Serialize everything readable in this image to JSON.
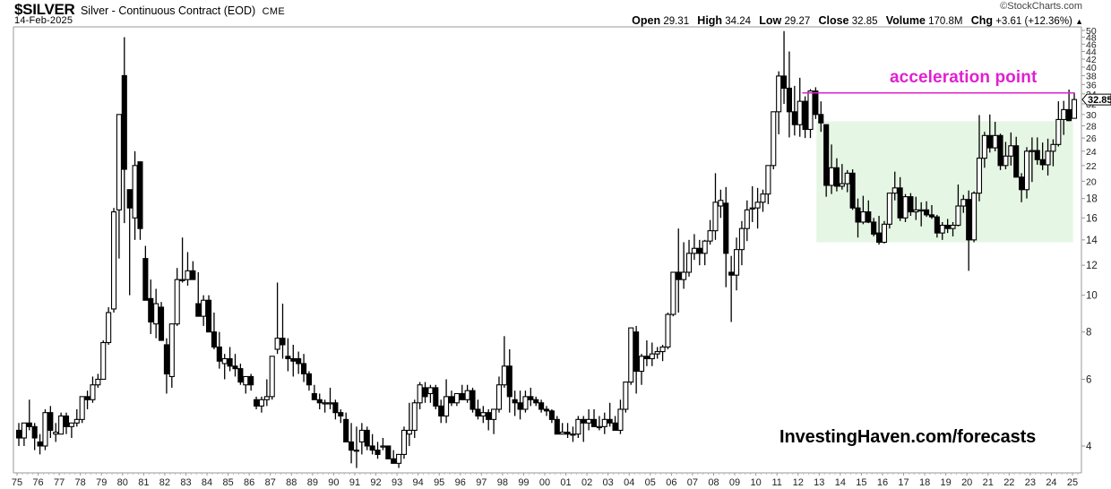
{
  "header": {
    "ticker": "$SILVER",
    "name": "Silver - Continuous Contract (EOD)",
    "exchange": "CME",
    "date": "14-Feb-2025",
    "brand": "©StockCharts.com",
    "open_label": "Open",
    "open": "29.31",
    "high_label": "High",
    "high": "34.24",
    "low_label": "Low",
    "low": "29.27",
    "close_label": "Close",
    "close": "32.85",
    "volume_label": "Volume",
    "volume": "170.8M",
    "chg_label": "Chg",
    "chg": "+3.61 (+12.36%)",
    "chg_arrow": "▲"
  },
  "annotation": {
    "text": "acceleration point",
    "color": "#e020d0",
    "level": 34.2
  },
  "watermark": "InvestingHaven.com/forecasts",
  "last_price_label": "32.85",
  "colors": {
    "up_fill": "#ffffff",
    "down_fill": "#000000",
    "box": "#e6f6e4",
    "axis": "#999999"
  },
  "chart_data": {
    "type": "candlestick",
    "title": "$SILVER Silver - Continuous Contract (EOD) CME",
    "scale": "log",
    "period": "quarterly",
    "xlabel": "",
    "ylabel": "",
    "ylim": [
      3.5,
      51
    ],
    "y_ticks": [
      4,
      6,
      8,
      10,
      12,
      14,
      16,
      18,
      20,
      22,
      24,
      26,
      28,
      30,
      32,
      34,
      36,
      38,
      40,
      42,
      44,
      46,
      48,
      50
    ],
    "x_ticks": [
      "75",
      "76",
      "77",
      "78",
      "79",
      "80",
      "81",
      "82",
      "83",
      "84",
      "85",
      "86",
      "87",
      "88",
      "89",
      "90",
      "91",
      "92",
      "93",
      "94",
      "95",
      "96",
      "97",
      "98",
      "99",
      "00",
      "01",
      "02",
      "03",
      "04",
      "05",
      "06",
      "07",
      "08",
      "09",
      "10",
      "11",
      "12",
      "13",
      "14",
      "15",
      "16",
      "17",
      "18",
      "19",
      "20",
      "21",
      "22",
      "23",
      "24",
      "25"
    ],
    "shaded_box": {
      "x_start": 2013.0,
      "x_end": 2024.9,
      "y_low": 13.8,
      "y_high": 28.8,
      "color": "#e6f6e4"
    },
    "horizontal_line": {
      "x_start": 2012.2,
      "x_end": 2024.9,
      "y": 34.2,
      "label": "acceleration point"
    },
    "candles_ohlc": [
      [
        1975.0,
        4.4,
        4.6,
        4.0,
        4.2
      ],
      [
        1975.25,
        4.2,
        4.6,
        4.0,
        4.6
      ],
      [
        1975.5,
        4.6,
        5.3,
        4.4,
        4.5
      ],
      [
        1975.75,
        4.5,
        4.6,
        3.9,
        4.2
      ],
      [
        1976.0,
        4.1,
        4.3,
        3.8,
        4.0
      ],
      [
        1976.25,
        4.0,
        5.0,
        3.9,
        4.9
      ],
      [
        1976.5,
        4.9,
        5.1,
        4.2,
        4.4
      ],
      [
        1976.75,
        4.3,
        4.6,
        4.1,
        4.35
      ],
      [
        1977.0,
        4.3,
        4.9,
        4.3,
        4.8
      ],
      [
        1977.25,
        4.8,
        4.9,
        4.3,
        4.5
      ],
      [
        1977.5,
        4.5,
        4.6,
        4.2,
        4.6
      ],
      [
        1977.75,
        4.6,
        5.0,
        4.5,
        4.7
      ],
      [
        1978.0,
        4.7,
        5.4,
        4.6,
        5.4
      ],
      [
        1978.25,
        5.4,
        5.6,
        5.0,
        5.3
      ],
      [
        1978.5,
        5.3,
        6.1,
        5.2,
        5.8
      ],
      [
        1978.75,
        5.8,
        6.2,
        5.7,
        6.0
      ],
      [
        1979.0,
        6.0,
        7.6,
        6.0,
        7.5
      ],
      [
        1979.25,
        7.5,
        9.3,
        7.4,
        9.0
      ],
      [
        1979.5,
        9.2,
        17.0,
        9.0,
        16.6
      ],
      [
        1979.75,
        16.8,
        20.0,
        12.5,
        30.0
      ],
      [
        1980.0,
        38.0,
        48.0,
        15.5,
        21.5
      ],
      [
        1980.25,
        19.0,
        19.0,
        10.0,
        17.0
      ],
      [
        1980.5,
        16.0,
        24.0,
        14.0,
        22.0
      ],
      [
        1980.75,
        22.5,
        22.5,
        14.0,
        15.0
      ],
      [
        1981.0,
        12.5,
        13.5,
        10.5,
        9.7
      ],
      [
        1981.25,
        9.8,
        11.0,
        7.9,
        8.5
      ],
      [
        1981.5,
        8.4,
        10.4,
        7.7,
        9.5
      ],
      [
        1981.75,
        9.3,
        9.6,
        7.7,
        7.6
      ],
      [
        1982.0,
        7.4,
        7.7,
        5.5,
        6.2
      ],
      [
        1982.25,
        6.1,
        7.7,
        5.7,
        8.4
      ],
      [
        1982.5,
        8.4,
        11.8,
        8.3,
        11.0
      ],
      [
        1982.75,
        11.0,
        14.2,
        10.8,
        11.0
      ],
      [
        1983.0,
        11.0,
        13.0,
        10.6,
        11.6
      ],
      [
        1983.25,
        11.6,
        12.3,
        11.0,
        11.0
      ],
      [
        1983.5,
        9.5,
        11.5,
        8.8,
        8.8
      ],
      [
        1983.75,
        8.8,
        10.0,
        8.3,
        9.7
      ],
      [
        1984.0,
        9.7,
        10.0,
        8.0,
        8.0
      ],
      [
        1984.25,
        8.0,
        9.0,
        7.2,
        7.3
      ],
      [
        1984.5,
        7.3,
        8.0,
        6.4,
        6.7
      ],
      [
        1984.75,
        6.6,
        7.0,
        6.0,
        6.8
      ],
      [
        1985.0,
        6.8,
        7.3,
        6.3,
        6.5
      ],
      [
        1985.25,
        6.5,
        7.0,
        6.1,
        6.4
      ],
      [
        1985.5,
        6.4,
        6.6,
        5.8,
        5.9
      ],
      [
        1985.75,
        5.8,
        6.1,
        5.5,
        6.1
      ],
      [
        1986.0,
        6.1,
        6.2,
        5.6,
        5.8
      ],
      [
        1986.25,
        5.3,
        5.4,
        5.0,
        5.1
      ],
      [
        1986.5,
        5.1,
        5.4,
        4.9,
        5.3
      ],
      [
        1986.75,
        5.3,
        6.0,
        5.1,
        5.4
      ],
      [
        1987.0,
        5.4,
        6.8,
        5.3,
        6.9
      ],
      [
        1987.25,
        7.2,
        10.8,
        7.0,
        7.7
      ],
      [
        1987.5,
        7.7,
        9.5,
        6.8,
        7.4
      ],
      [
        1987.75,
        6.9,
        7.7,
        6.3,
        6.8
      ],
      [
        1988.0,
        6.8,
        7.4,
        6.1,
        6.7
      ],
      [
        1988.25,
        6.8,
        7.1,
        6.2,
        6.6
      ],
      [
        1988.5,
        6.6,
        7.0,
        5.9,
        6.2
      ],
      [
        1988.75,
        6.2,
        6.3,
        5.6,
        5.8
      ],
      [
        1989.0,
        5.5,
        5.8,
        5.3,
        5.3
      ],
      [
        1989.25,
        5.3,
        5.5,
        5.0,
        5.2
      ],
      [
        1989.5,
        5.2,
        5.3,
        4.9,
        5.2
      ],
      [
        1989.75,
        5.2,
        5.7,
        5.0,
        5.2
      ],
      [
        1990.0,
        5.2,
        5.3,
        4.7,
        4.9
      ],
      [
        1990.25,
        4.9,
        5.0,
        4.6,
        4.8
      ],
      [
        1990.5,
        4.7,
        4.9,
        4.1,
        4.1
      ],
      [
        1990.75,
        4.1,
        4.6,
        3.6,
        3.9
      ],
      [
        1991.0,
        3.9,
        4.5,
        3.5,
        3.9
      ],
      [
        1991.25,
        4.1,
        4.6,
        3.8,
        4.4
      ],
      [
        1991.5,
        4.4,
        4.5,
        3.9,
        4.0
      ],
      [
        1991.75,
        4.0,
        4.3,
        3.8,
        3.9
      ],
      [
        1992.0,
        3.9,
        4.1,
        3.7,
        3.8
      ],
      [
        1992.25,
        4.0,
        4.2,
        3.9,
        4.0
      ],
      [
        1992.5,
        4.0,
        4.0,
        3.7,
        3.7
      ],
      [
        1992.75,
        3.7,
        3.9,
        3.6,
        3.6
      ],
      [
        1993.0,
        3.6,
        3.7,
        3.5,
        3.8
      ],
      [
        1993.25,
        3.8,
        4.5,
        3.7,
        4.4
      ],
      [
        1993.5,
        4.3,
        5.2,
        4.0,
        4.4
      ],
      [
        1993.75,
        4.4,
        5.3,
        4.2,
        5.2
      ],
      [
        1994.0,
        5.2,
        5.9,
        5.0,
        5.8
      ],
      [
        1994.25,
        5.7,
        5.9,
        5.2,
        5.4
      ],
      [
        1994.5,
        5.5,
        5.8,
        5.2,
        5.7
      ],
      [
        1994.75,
        5.7,
        5.8,
        5.0,
        5.1
      ],
      [
        1995.0,
        5.1,
        5.3,
        4.6,
        4.8
      ],
      [
        1995.25,
        4.8,
        6.0,
        4.6,
        5.4
      ],
      [
        1995.5,
        5.4,
        5.6,
        5.1,
        5.2
      ],
      [
        1995.75,
        5.2,
        5.5,
        5.1,
        5.5
      ],
      [
        1996.0,
        5.5,
        5.8,
        5.3,
        5.3
      ],
      [
        1996.25,
        5.3,
        5.8,
        5.2,
        5.6
      ],
      [
        1996.5,
        5.6,
        5.7,
        4.9,
        5.0
      ],
      [
        1996.75,
        5.0,
        5.3,
        4.7,
        4.8
      ],
      [
        1997.0,
        4.8,
        5.1,
        4.6,
        4.9
      ],
      [
        1997.25,
        4.9,
        5.0,
        4.4,
        4.7
      ],
      [
        1997.5,
        4.7,
        5.0,
        4.3,
        5.0
      ],
      [
        1997.75,
        5.0,
        6.1,
        4.9,
        5.8
      ],
      [
        1998.0,
        5.8,
        7.8,
        5.7,
        6.5
      ],
      [
        1998.25,
        6.5,
        7.2,
        4.9,
        5.4
      ],
      [
        1998.5,
        5.3,
        5.6,
        4.8,
        5.2
      ],
      [
        1998.75,
        5.2,
        5.6,
        4.7,
        5.0
      ],
      [
        1999.0,
        5.0,
        5.6,
        4.9,
        5.4
      ],
      [
        1999.25,
        5.4,
        5.7,
        5.1,
        5.3
      ],
      [
        1999.5,
        5.3,
        5.4,
        5.1,
        5.2
      ],
      [
        1999.75,
        5.2,
        5.3,
        4.9,
        5.0
      ],
      [
        2000.0,
        5.0,
        5.1,
        4.8,
        4.95
      ],
      [
        2000.25,
        4.95,
        5.0,
        4.6,
        4.7
      ],
      [
        2000.5,
        4.7,
        4.8,
        4.3,
        4.3
      ],
      [
        2000.75,
        4.3,
        4.6,
        4.3,
        4.35
      ],
      [
        2001.0,
        4.35,
        4.6,
        4.2,
        4.3
      ],
      [
        2001.25,
        4.3,
        4.5,
        4.1,
        4.3
      ],
      [
        2001.5,
        4.3,
        4.8,
        4.2,
        4.7
      ],
      [
        2001.75,
        4.7,
        4.8,
        4.1,
        4.6
      ],
      [
        2002.0,
        4.6,
        5.0,
        4.4,
        4.7
      ],
      [
        2002.25,
        4.7,
        5.0,
        4.5,
        4.5
      ],
      [
        2002.5,
        4.5,
        4.8,
        4.4,
        4.5
      ],
      [
        2002.75,
        4.5,
        4.9,
        4.3,
        4.7
      ],
      [
        2003.0,
        4.7,
        5.2,
        4.5,
        4.6
      ],
      [
        2003.25,
        4.6,
        4.8,
        4.4,
        4.4
      ],
      [
        2003.5,
        4.4,
        5.3,
        4.3,
        5.0
      ],
      [
        2003.75,
        5.0,
        5.8,
        4.9,
        5.9
      ],
      [
        2004.0,
        5.9,
        8.1,
        5.8,
        8.2
      ],
      [
        2004.25,
        8.0,
        8.3,
        5.5,
        6.3
      ],
      [
        2004.5,
        6.3,
        7.0,
        5.8,
        6.9
      ],
      [
        2004.75,
        6.9,
        7.6,
        6.5,
        6.8
      ],
      [
        2005.0,
        6.8,
        7.5,
        6.5,
        7.0
      ],
      [
        2005.25,
        7.0,
        7.3,
        6.8,
        7.1
      ],
      [
        2005.5,
        7.1,
        7.4,
        6.7,
        7.3
      ],
      [
        2005.75,
        7.3,
        9.0,
        7.2,
        8.9
      ],
      [
        2006.0,
        8.9,
        11.5,
        8.8,
        11.5
      ],
      [
        2006.25,
        11.5,
        15.0,
        9.0,
        11.0
      ],
      [
        2006.5,
        11.0,
        13.8,
        10.4,
        11.5
      ],
      [
        2006.75,
        11.5,
        14.0,
        11.2,
        12.9
      ],
      [
        2007.0,
        12.9,
        14.5,
        12.4,
        13.3
      ],
      [
        2007.25,
        13.3,
        14.0,
        12.0,
        12.9
      ],
      [
        2007.5,
        12.9,
        14.0,
        12.0,
        13.9
      ],
      [
        2007.75,
        13.9,
        15.8,
        13.6,
        14.8
      ],
      [
        2008.0,
        14.8,
        21.0,
        14.0,
        17.6
      ],
      [
        2008.25,
        17.2,
        19.0,
        16.0,
        17.8
      ],
      [
        2008.5,
        17.5,
        19.3,
        10.5,
        12.9
      ],
      [
        2008.75,
        11.5,
        12.7,
        8.5,
        11.3
      ],
      [
        2009.0,
        11.3,
        14.2,
        10.3,
        13.2
      ],
      [
        2009.25,
        13.2,
        15.7,
        12.0,
        15.0
      ],
      [
        2009.5,
        15.0,
        17.8,
        13.9,
        16.8
      ],
      [
        2009.75,
        16.9,
        19.4,
        15.6,
        17.0
      ],
      [
        2010.0,
        17.0,
        19.2,
        15.0,
        17.6
      ],
      [
        2010.25,
        17.6,
        19.0,
        16.6,
        18.5
      ],
      [
        2010.5,
        18.5,
        22.0,
        17.4,
        22.0
      ],
      [
        2010.75,
        22.0,
        30.0,
        21.5,
        30.5
      ],
      [
        2011.0,
        30.5,
        39.0,
        26.6,
        37.9
      ],
      [
        2011.25,
        37.9,
        49.8,
        32.0,
        35.2
      ],
      [
        2011.5,
        35.2,
        44.0,
        26.1,
        30.5
      ],
      [
        2011.75,
        30.5,
        35.7,
        26.4,
        28.2
      ],
      [
        2012.0,
        28.2,
        37.5,
        26.2,
        32.5
      ],
      [
        2012.25,
        32.5,
        33.5,
        26.0,
        27.4
      ],
      [
        2012.5,
        27.4,
        35.0,
        26.0,
        34.6
      ],
      [
        2012.75,
        34.6,
        35.4,
        29.2,
        30.0
      ],
      [
        2013.0,
        30.0,
        32.5,
        27.0,
        28.5
      ],
      [
        2013.25,
        28.2,
        28.2,
        18.2,
        19.5
      ],
      [
        2013.5,
        19.5,
        25.0,
        18.5,
        21.7
      ],
      [
        2013.75,
        21.7,
        23.0,
        18.8,
        19.4
      ],
      [
        2014.0,
        19.4,
        22.2,
        19.0,
        19.7
      ],
      [
        2014.25,
        19.7,
        21.4,
        18.7,
        21.0
      ],
      [
        2014.5,
        21.0,
        21.5,
        16.8,
        17.0
      ],
      [
        2014.75,
        17.0,
        18.0,
        14.2,
        15.6
      ],
      [
        2015.0,
        15.6,
        18.3,
        15.4,
        16.6
      ],
      [
        2015.25,
        16.6,
        17.8,
        15.5,
        15.6
      ],
      [
        2015.5,
        15.6,
        16.0,
        14.3,
        14.5
      ],
      [
        2015.75,
        14.6,
        16.2,
        13.6,
        13.8
      ],
      [
        2016.0,
        13.8,
        15.7,
        13.7,
        15.4
      ],
      [
        2016.25,
        15.4,
        18.5,
        15.0,
        18.6
      ],
      [
        2016.5,
        18.6,
        21.2,
        17.8,
        19.2
      ],
      [
        2016.75,
        19.2,
        20.5,
        15.7,
        16.0
      ],
      [
        2017.0,
        16.0,
        18.5,
        15.6,
        18.2
      ],
      [
        2017.25,
        18.2,
        18.6,
        16.2,
        16.6
      ],
      [
        2017.5,
        16.6,
        18.2,
        15.8,
        16.8
      ],
      [
        2017.75,
        16.8,
        17.6,
        15.2,
        16.8
      ],
      [
        2018.0,
        16.8,
        17.7,
        16.1,
        16.3
      ],
      [
        2018.25,
        16.3,
        17.3,
        15.9,
        16.1
      ],
      [
        2018.5,
        16.1,
        16.3,
        14.2,
        14.6
      ],
      [
        2018.75,
        14.6,
        15.6,
        14.0,
        15.3
      ],
      [
        2019.0,
        15.3,
        15.9,
        14.6,
        15.0
      ],
      [
        2019.25,
        15.0,
        15.6,
        14.3,
        15.3
      ],
      [
        2019.5,
        15.3,
        19.6,
        15.2,
        17.2
      ],
      [
        2019.75,
        17.2,
        18.4,
        16.5,
        17.9
      ],
      [
        2020.0,
        17.9,
        18.9,
        11.6,
        14.0
      ],
      [
        2020.25,
        14.0,
        18.8,
        13.8,
        18.6
      ],
      [
        2020.5,
        18.6,
        29.9,
        17.7,
        23.0
      ],
      [
        2020.75,
        23.0,
        27.0,
        21.7,
        26.4
      ],
      [
        2021.0,
        26.4,
        30.0,
        23.8,
        24.5
      ],
      [
        2021.25,
        24.5,
        28.7,
        24.0,
        26.4
      ],
      [
        2021.5,
        26.4,
        26.7,
        21.4,
        22.0
      ],
      [
        2021.75,
        22.0,
        25.4,
        21.5,
        23.3
      ],
      [
        2022.0,
        23.3,
        26.9,
        22.0,
        24.8
      ],
      [
        2022.25,
        24.8,
        26.2,
        20.5,
        20.5
      ],
      [
        2022.5,
        20.5,
        21.0,
        17.6,
        19.0
      ],
      [
        2022.75,
        19.0,
        24.6,
        18.0,
        24.0
      ],
      [
        2023.0,
        24.0,
        26.1,
        19.9,
        24.1
      ],
      [
        2023.25,
        24.1,
        26.1,
        22.1,
        22.8
      ],
      [
        2023.5,
        22.8,
        25.3,
        21.4,
        22.1
      ],
      [
        2023.75,
        22.1,
        25.9,
        20.7,
        24.0
      ],
      [
        2024.0,
        24.0,
        25.8,
        21.9,
        25.0
      ],
      [
        2024.25,
        25.0,
        32.5,
        24.7,
        29.1
      ],
      [
        2024.5,
        29.1,
        32.6,
        26.5,
        30.9
      ],
      [
        2024.75,
        30.9,
        34.9,
        28.8,
        28.9
      ],
      [
        2025.0,
        29.31,
        34.24,
        29.27,
        32.85
      ]
    ]
  }
}
